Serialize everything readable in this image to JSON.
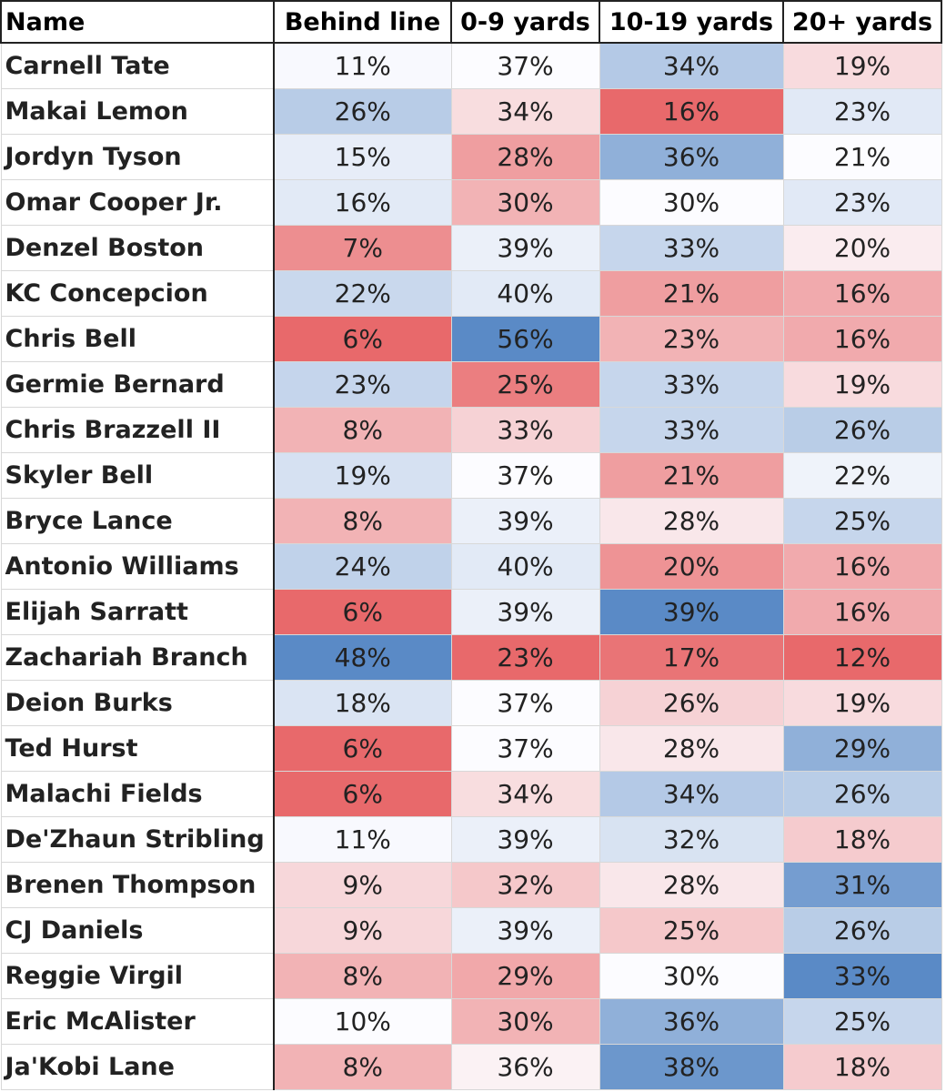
{
  "table": {
    "header": [
      "Name",
      "Behind line",
      "0-9 yards",
      "10-19 yards",
      "20+ yards"
    ],
    "rows": [
      [
        "Carnell Tate",
        "11%",
        "37%",
        "34%",
        "19%"
      ],
      [
        "Makai Lemon",
        "26%",
        "34%",
        "16%",
        "23%"
      ],
      [
        "Jordyn Tyson",
        "15%",
        "28%",
        "36%",
        "21%"
      ],
      [
        "Omar Cooper Jr.",
        "16%",
        "30%",
        "30%",
        "23%"
      ],
      [
        "Denzel Boston",
        "7%",
        "39%",
        "33%",
        "20%"
      ],
      [
        "KC Concepcion",
        "22%",
        "40%",
        "21%",
        "16%"
      ],
      [
        "Chris Bell",
        "6%",
        "56%",
        "23%",
        "16%"
      ],
      [
        "Germie Bernard",
        "23%",
        "25%",
        "33%",
        "19%"
      ],
      [
        "Chris Brazzell II",
        "8%",
        "33%",
        "33%",
        "26%"
      ],
      [
        "Skyler Bell",
        "19%",
        "37%",
        "21%",
        "22%"
      ],
      [
        "Bryce Lance",
        "8%",
        "39%",
        "28%",
        "25%"
      ],
      [
        "Antonio Williams",
        "24%",
        "40%",
        "20%",
        "16%"
      ],
      [
        "Elijah Sarratt",
        "6%",
        "39%",
        "39%",
        "16%"
      ],
      [
        "Zachariah Branch",
        "48%",
        "23%",
        "17%",
        "12%"
      ],
      [
        "Deion Burks",
        "18%",
        "37%",
        "26%",
        "19%"
      ],
      [
        "Ted Hurst",
        "6%",
        "37%",
        "28%",
        "29%"
      ],
      [
        "Malachi Fields",
        "6%",
        "34%",
        "34%",
        "26%"
      ],
      [
        "De'Zhaun Stribling",
        "11%",
        "39%",
        "32%",
        "18%"
      ],
      [
        "Brenen Thompson",
        "9%",
        "32%",
        "28%",
        "31%"
      ],
      [
        "CJ Daniels",
        "9%",
        "39%",
        "25%",
        "26%"
      ],
      [
        "Reggie Virgil",
        "8%",
        "29%",
        "30%",
        "33%"
      ],
      [
        "Eric McAlister",
        "10%",
        "30%",
        "36%",
        "25%"
      ],
      [
        "Ja'Kobi Lane",
        "8%",
        "36%",
        "38%",
        "18%"
      ]
    ],
    "color_scale": {
      "low": "#e8696b",
      "mid": "#fcfcff",
      "high": "#5a8ac6"
    }
  }
}
